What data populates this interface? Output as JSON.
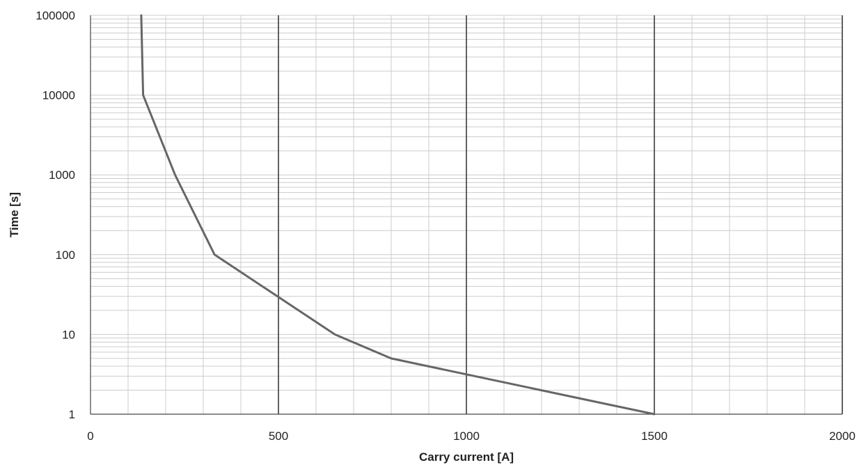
{
  "chart_data": {
    "type": "line",
    "title": "",
    "xlabel": "Carry current [A]",
    "ylabel": "Time [s]",
    "xlim": [
      0,
      2000
    ],
    "ylim": [
      1,
      100000
    ],
    "yscale": "log",
    "x_ticks": [
      0,
      500,
      1000,
      1500,
      2000
    ],
    "x_tick_labels": [
      "0",
      "500",
      "1000",
      "1500",
      "2000"
    ],
    "y_ticks": [
      1,
      10,
      100,
      1000,
      10000,
      100000
    ],
    "y_tick_labels": [
      "1",
      "10",
      "100",
      "1000",
      "10000",
      "100000"
    ],
    "grid": true,
    "legend": "none",
    "series": [
      {
        "color": "#666666",
        "x": [
          135,
          140,
          225,
          330,
          650,
          800,
          1500
        ],
        "y": [
          100000,
          10000,
          1000,
          100,
          10,
          5,
          1
        ]
      }
    ],
    "colors": {
      "line": "#666666",
      "major_vgrid": "#3a3a3a",
      "grid": "#cccccc",
      "text": "#222222"
    }
  }
}
